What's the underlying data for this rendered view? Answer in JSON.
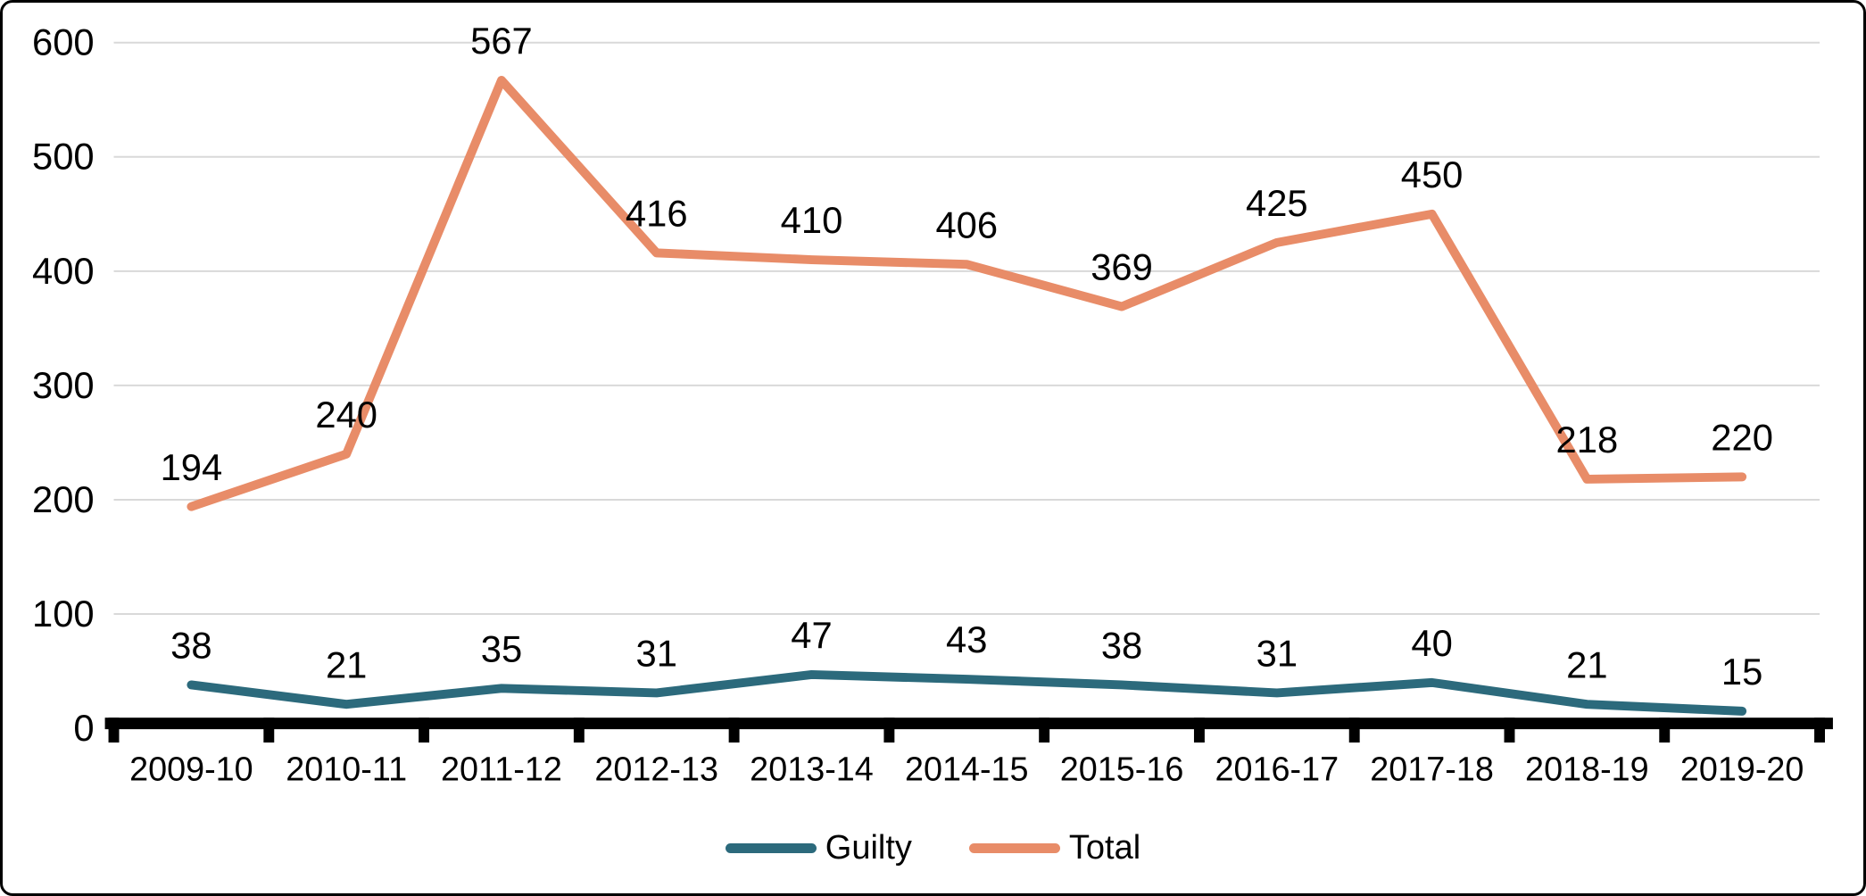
{
  "chart_data": {
    "type": "line",
    "title": "",
    "xlabel": "",
    "ylabel": "",
    "categories": [
      "2009-10",
      "2010-11",
      "2011-12",
      "2012-13",
      "2013-14",
      "2014-15",
      "2015-16",
      "2016-17",
      "2017-18",
      "2018-19",
      "2019-20"
    ],
    "series": [
      {
        "name": "Guilty",
        "color": "#2C6A7C",
        "values": [
          38,
          21,
          35,
          31,
          47,
          43,
          38,
          31,
          40,
          21,
          15
        ]
      },
      {
        "name": "Total",
        "color": "#E88C68",
        "values": [
          194,
          240,
          567,
          416,
          410,
          406,
          369,
          425,
          450,
          218,
          220
        ]
      }
    ],
    "ylim": [
      0,
      600
    ],
    "y_ticks": [
      0,
      100,
      200,
      300,
      400,
      500,
      600
    ],
    "grid": "horizontal",
    "gridline_color": "#D9D9D9",
    "axis_color": "#000000",
    "legend_position": "bottom-center",
    "data_labels": true
  }
}
